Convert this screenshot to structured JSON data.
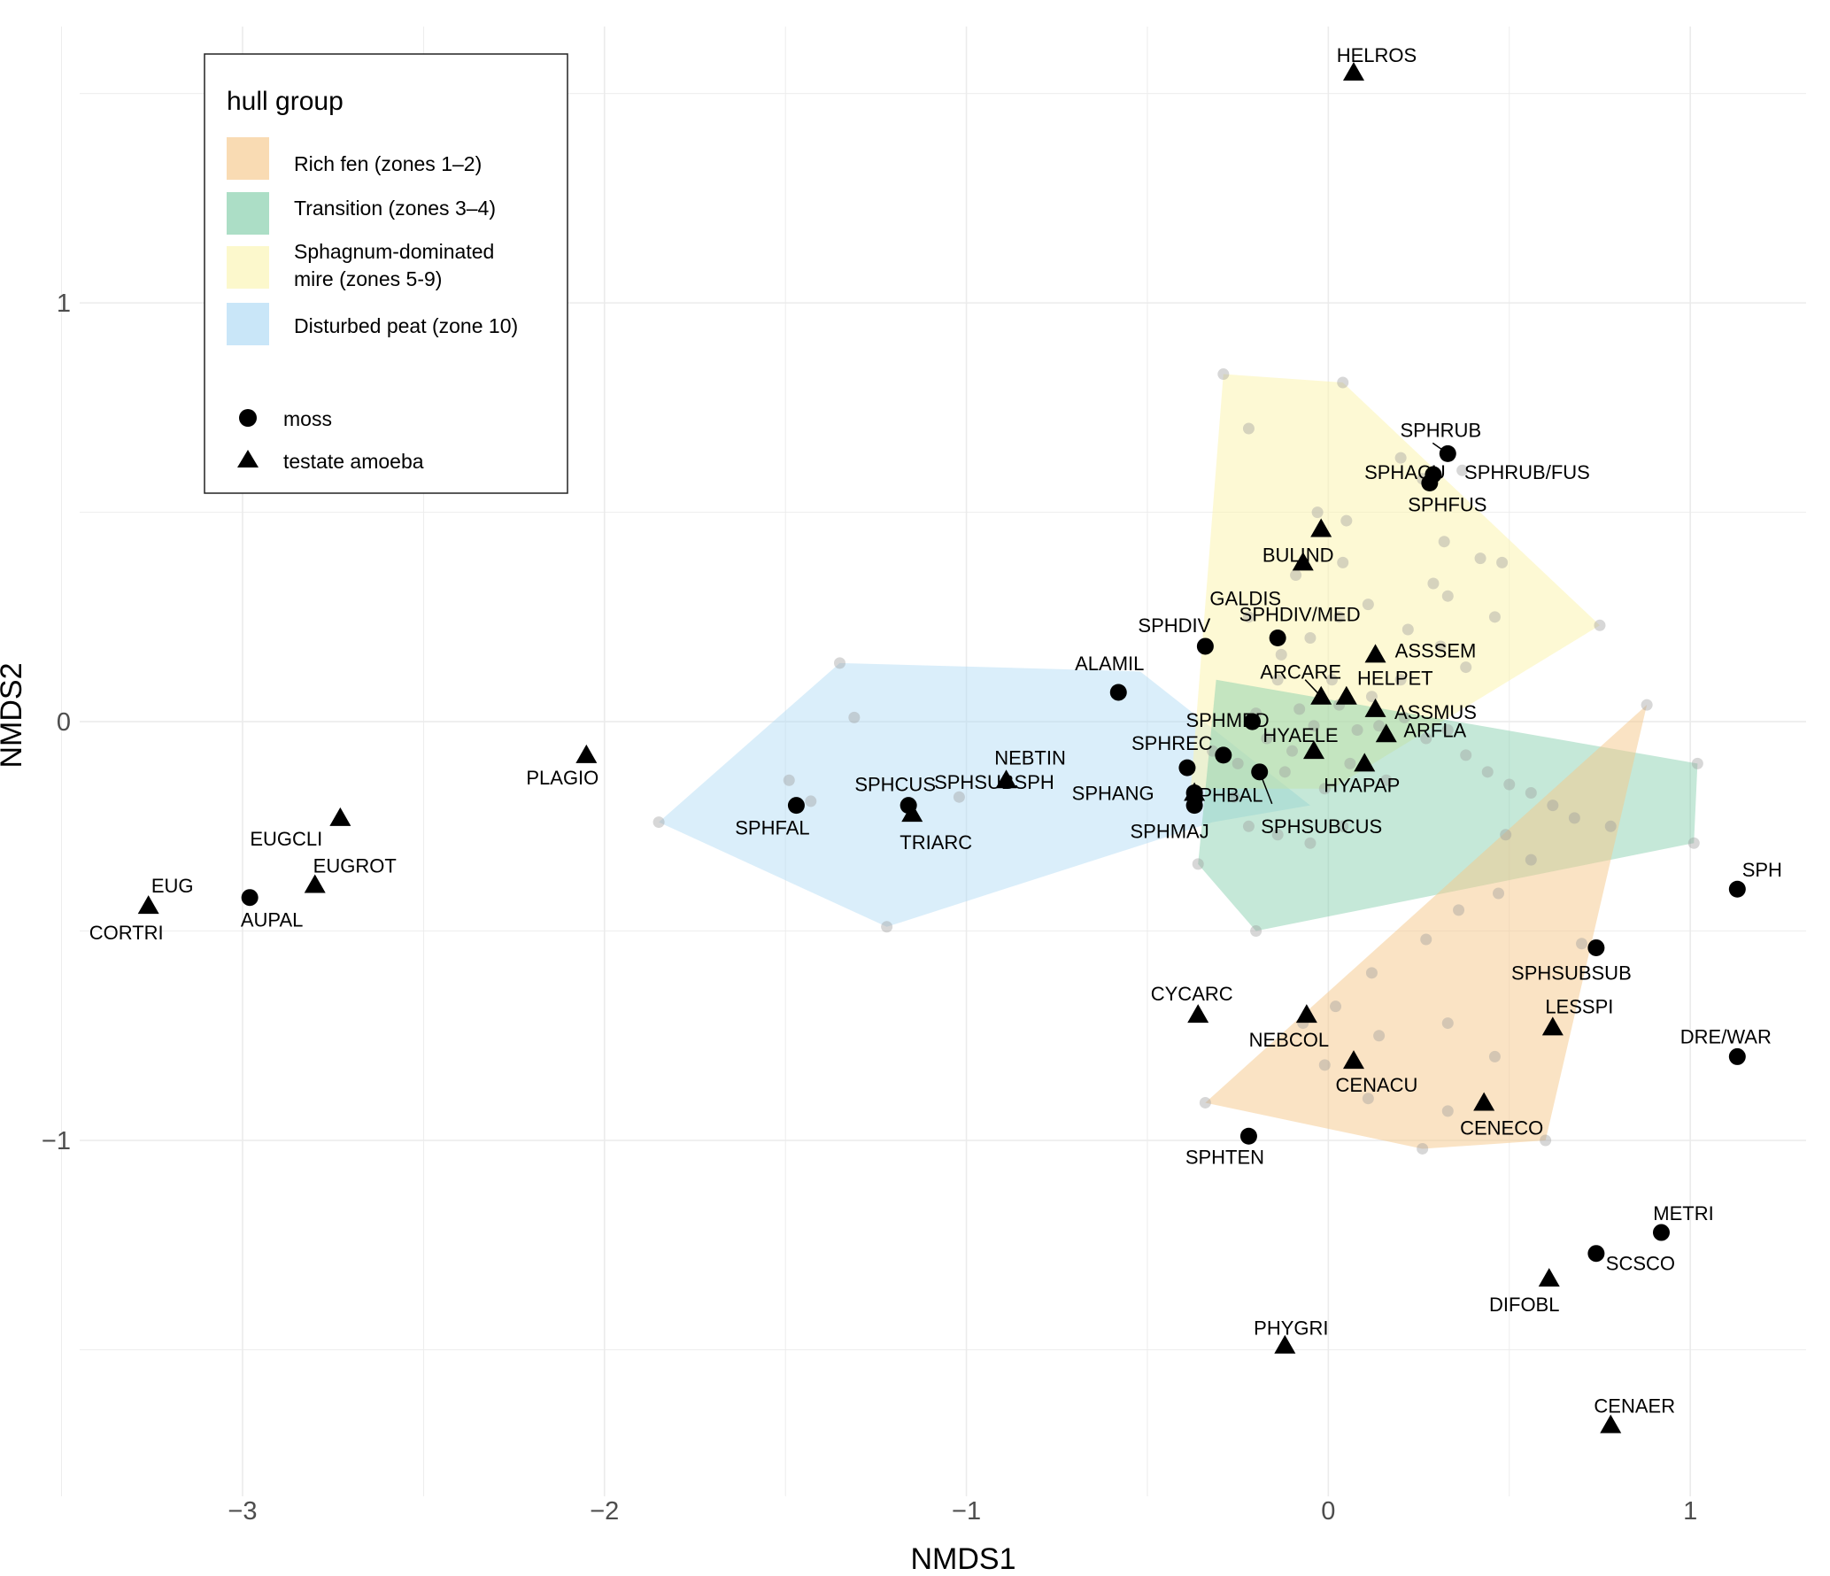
{
  "chart_data": {
    "type": "scatter",
    "title": "",
    "xlabel": "NMDS1",
    "ylabel": "NMDS2",
    "xlim": [
      -3.45,
      1.32
    ],
    "ylim": [
      -1.85,
      1.66
    ],
    "xticks": [
      {
        "value": -3,
        "label": "−3"
      },
      {
        "value": -2,
        "label": "−2"
      },
      {
        "value": -1,
        "label": "−1"
      },
      {
        "value": 0,
        "label": "0"
      },
      {
        "value": 1,
        "label": "1"
      }
    ],
    "yticks": [
      {
        "value": -1,
        "label": "−1"
      },
      {
        "value": 0,
        "label": "0"
      },
      {
        "value": 1,
        "label": "1"
      }
    ],
    "grid": true,
    "legend": {
      "position": "top-left",
      "title": "hull group",
      "hull_entries": [
        {
          "label": "Rich fen (zones 1–2)",
          "color": "#f6c88a"
        },
        {
          "label": "Transition (zones 3–4)",
          "color": "#7fcca8"
        },
        {
          "label": "Sphagnum-dominated mire (zones 5-9)",
          "label_lines": [
            "Sphagnum-dominated",
            "mire (zones 5-9)"
          ],
          "color": "#fbf4b0"
        },
        {
          "label": "Disturbed peat (zone 10)",
          "color": "#acd9f4"
        }
      ],
      "shape_entries": [
        {
          "label": "moss",
          "shape": "circle"
        },
        {
          "label": "testate amoeba",
          "shape": "triangle"
        }
      ]
    },
    "hulls": [
      {
        "group": "Disturbed peat (zone 10)",
        "color": "#acd9f4",
        "opacity": 0.45,
        "points": [
          [
            -1.85,
            -0.24
          ],
          [
            -1.35,
            0.14
          ],
          [
            -0.52,
            0.12
          ],
          [
            -0.05,
            -0.2
          ],
          [
            -0.32,
            -0.24
          ],
          [
            -1.22,
            -0.49
          ]
        ]
      },
      {
        "group": "Sphagnum-dominated mire (zones 5-9)",
        "color": "#fbf4b0",
        "opacity": 0.55,
        "points": [
          [
            -0.29,
            0.83
          ],
          [
            0.04,
            0.81
          ],
          [
            0.75,
            0.23
          ],
          [
            0.01,
            -0.16
          ],
          [
            -0.38,
            -0.16
          ]
        ]
      },
      {
        "group": "Transition (zones 3–4)",
        "color": "#7fcca8",
        "opacity": 0.45,
        "points": [
          [
            -0.31,
            0.1
          ],
          [
            1.02,
            -0.1
          ],
          [
            1.01,
            -0.29
          ],
          [
            -0.2,
            -0.5
          ],
          [
            -0.36,
            -0.34
          ]
        ]
      },
      {
        "group": "Rich fen (zones 1–2)",
        "color": "#f6c88a",
        "opacity": 0.5,
        "points": [
          [
            0.88,
            0.04
          ],
          [
            0.6,
            -1.0
          ],
          [
            0.26,
            -1.02
          ],
          [
            -0.34,
            -0.91
          ]
        ]
      }
    ],
    "site_points": [
      [
        -0.29,
        0.83
      ],
      [
        0.04,
        0.81
      ],
      [
        0.75,
        0.23
      ],
      [
        0.88,
        0.04
      ],
      [
        1.02,
        -0.1
      ],
      [
        1.01,
        -0.29
      ],
      [
        0.6,
        -1.0
      ],
      [
        0.26,
        -1.02
      ],
      [
        -0.34,
        -0.91
      ],
      [
        -0.2,
        -0.5
      ],
      [
        -0.36,
        -0.34
      ],
      [
        -1.22,
        -0.49
      ],
      [
        -1.85,
        -0.24
      ],
      [
        -1.35,
        0.14
      ],
      [
        -1.31,
        0.01
      ],
      [
        -1.49,
        -0.14
      ],
      [
        -1.43,
        -0.19
      ],
      [
        -1.02,
        -0.18
      ],
      [
        -0.22,
        0.7
      ],
      [
        0.2,
        0.63
      ],
      [
        0.26,
        0.58
      ],
      [
        0.37,
        0.6
      ],
      [
        0.48,
        0.38
      ],
      [
        0.32,
        0.43
      ],
      [
        0.05,
        0.48
      ],
      [
        -0.03,
        0.5
      ],
      [
        -0.09,
        0.35
      ],
      [
        0.04,
        0.38
      ],
      [
        0.29,
        0.33
      ],
      [
        0.42,
        0.39
      ],
      [
        0.33,
        0.3
      ],
      [
        0.22,
        0.22
      ],
      [
        0.11,
        0.28
      ],
      [
        0.03,
        0.25
      ],
      [
        -0.05,
        0.2
      ],
      [
        0.31,
        0.18
      ],
      [
        0.46,
        0.25
      ],
      [
        0.38,
        0.13
      ],
      [
        0.2,
        0.1
      ],
      [
        0.12,
        0.06
      ],
      [
        0.01,
        0.1
      ],
      [
        -0.13,
        0.16
      ],
      [
        -0.22,
        0.25
      ],
      [
        -0.08,
        0.03
      ],
      [
        -0.14,
        0.1
      ],
      [
        -0.2,
        0.02
      ],
      [
        -0.17,
        -0.04
      ],
      [
        -0.1,
        -0.07
      ],
      [
        -0.04,
        -0.01
      ],
      [
        0.03,
        0.04
      ],
      [
        0.08,
        -0.02
      ],
      [
        0.14,
        -0.01
      ],
      [
        0.21,
        0.01
      ],
      [
        0.27,
        -0.04
      ],
      [
        0.33,
        -0.02
      ],
      [
        0.38,
        -0.08
      ],
      [
        0.44,
        -0.12
      ],
      [
        0.5,
        -0.15
      ],
      [
        0.56,
        -0.17
      ],
      [
        0.62,
        -0.2
      ],
      [
        0.68,
        -0.23
      ],
      [
        0.78,
        -0.25
      ],
      [
        0.49,
        -0.27
      ],
      [
        0.56,
        -0.33
      ],
      [
        0.47,
        -0.41
      ],
      [
        0.36,
        -0.45
      ],
      [
        0.27,
        -0.52
      ],
      [
        0.12,
        -0.6
      ],
      [
        0.02,
        -0.68
      ],
      [
        -0.07,
        -0.72
      ],
      [
        0.14,
        -0.75
      ],
      [
        0.33,
        -0.72
      ],
      [
        0.46,
        -0.8
      ],
      [
        0.33,
        -0.93
      ],
      [
        0.11,
        -0.9
      ],
      [
        -0.01,
        -0.82
      ],
      [
        -0.26,
        -0.18
      ],
      [
        -0.22,
        -0.25
      ],
      [
        -0.14,
        -0.27
      ],
      [
        -0.05,
        -0.29
      ],
      [
        0.04,
        -0.25
      ],
      [
        -0.01,
        -0.16
      ],
      [
        -0.32,
        -0.07
      ],
      [
        -0.25,
        -0.1
      ],
      [
        -0.12,
        -0.12
      ],
      [
        0.06,
        -0.1
      ],
      [
        0.16,
        -0.14
      ],
      [
        0.7,
        -0.53
      ]
    ],
    "series": [
      {
        "name": "moss",
        "shape": "circle",
        "points": [
          {
            "label": "SPHRUB",
            "x": 0.33,
            "y": 0.64
          },
          {
            "label": "SPHACU",
            "x": 0.29,
            "y": 0.59
          },
          {
            "label": "SPHFUS",
            "x": 0.28,
            "y": 0.57
          },
          {
            "label": "SPHDIV/MED",
            "x": -0.14,
            "y": 0.2
          },
          {
            "label": "SPHDIV",
            "x": -0.34,
            "y": 0.18
          },
          {
            "label": "ALAMIL",
            "x": -0.58,
            "y": 0.07
          },
          {
            "label": "SPHMED",
            "x": -0.21,
            "y": 0.0
          },
          {
            "label": "SPHREC",
            "x": -0.29,
            "y": -0.08
          },
          {
            "label": "SPHSUBCUS",
            "x": -0.19,
            "y": -0.12
          },
          {
            "label": "SPHSUBSPH",
            "x": -0.39,
            "y": -0.11
          },
          {
            "label": "SPHANG",
            "x": -0.37,
            "y": -0.17
          },
          {
            "label": "SPHMAJ",
            "x": -0.37,
            "y": -0.2
          },
          {
            "label": "SPHFAL",
            "x": -1.47,
            "y": -0.2
          },
          {
            "label": "SPHCUS",
            "x": -1.16,
            "y": -0.2
          },
          {
            "label": "AUPAL",
            "x": -2.98,
            "y": -0.42
          },
          {
            "label": "SPH",
            "x": 1.13,
            "y": -0.4
          },
          {
            "label": "SPHSUBSUB",
            "x": 0.74,
            "y": -0.54
          },
          {
            "label": "DRE/WAR",
            "x": 1.13,
            "y": -0.8
          },
          {
            "label": "SPHTEN",
            "x": -0.22,
            "y": -0.99
          },
          {
            "label": "METRI",
            "x": 0.92,
            "y": -1.22
          },
          {
            "label": "SCSCO",
            "x": 0.74,
            "y": -1.27
          }
        ]
      },
      {
        "name": "testate amoeba",
        "shape": "triangle",
        "points": [
          {
            "label": "HELROS",
            "x": 0.07,
            "y": 1.55
          },
          {
            "label": "BULIND",
            "x": -0.02,
            "y": 0.46
          },
          {
            "label": "GALDIS",
            "x": -0.07,
            "y": 0.38
          },
          {
            "label": "ASSSEM",
            "x": 0.13,
            "y": 0.16
          },
          {
            "label": "ARCARE",
            "x": -0.02,
            "y": 0.06
          },
          {
            "label": "HELPET",
            "x": 0.05,
            "y": 0.06
          },
          {
            "label": "ASSMUS",
            "x": 0.13,
            "y": 0.03
          },
          {
            "label": "ARFLA",
            "x": 0.16,
            "y": -0.03
          },
          {
            "label": "HYAELE",
            "x": -0.04,
            "y": -0.07
          },
          {
            "label": "HYAPAP",
            "x": 0.1,
            "y": -0.1
          },
          {
            "label": "SPHBAL",
            "x": -0.37,
            "y": -0.17
          },
          {
            "label": "NEBTIN",
            "x": -0.89,
            "y": -0.14
          },
          {
            "label": "TRIARC",
            "x": -1.15,
            "y": -0.22
          },
          {
            "label": "PLAGIO",
            "x": -2.05,
            "y": -0.08
          },
          {
            "label": "EUGCLI",
            "x": -2.73,
            "y": -0.23
          },
          {
            "label": "EUGROT",
            "x": -2.8,
            "y": -0.39
          },
          {
            "label": "EUG",
            "x": -3.26,
            "y": -0.44
          },
          {
            "label": "CORTRI",
            "x": -3.26,
            "y": -0.44
          },
          {
            "label": "CYCARC",
            "x": -0.36,
            "y": -0.7
          },
          {
            "label": "NEBCOL",
            "x": -0.06,
            "y": -0.7
          },
          {
            "label": "CENACU",
            "x": 0.07,
            "y": -0.81
          },
          {
            "label": "LESSPI",
            "x": 0.62,
            "y": -0.73
          },
          {
            "label": "CENECO",
            "x": 0.43,
            "y": -0.91
          },
          {
            "label": "DIFOBL",
            "x": 0.61,
            "y": -1.33
          },
          {
            "label": "PHYGRI",
            "x": -0.12,
            "y": -1.49
          },
          {
            "label": "CENAER",
            "x": 0.78,
            "y": -1.68
          }
        ]
      }
    ]
  }
}
